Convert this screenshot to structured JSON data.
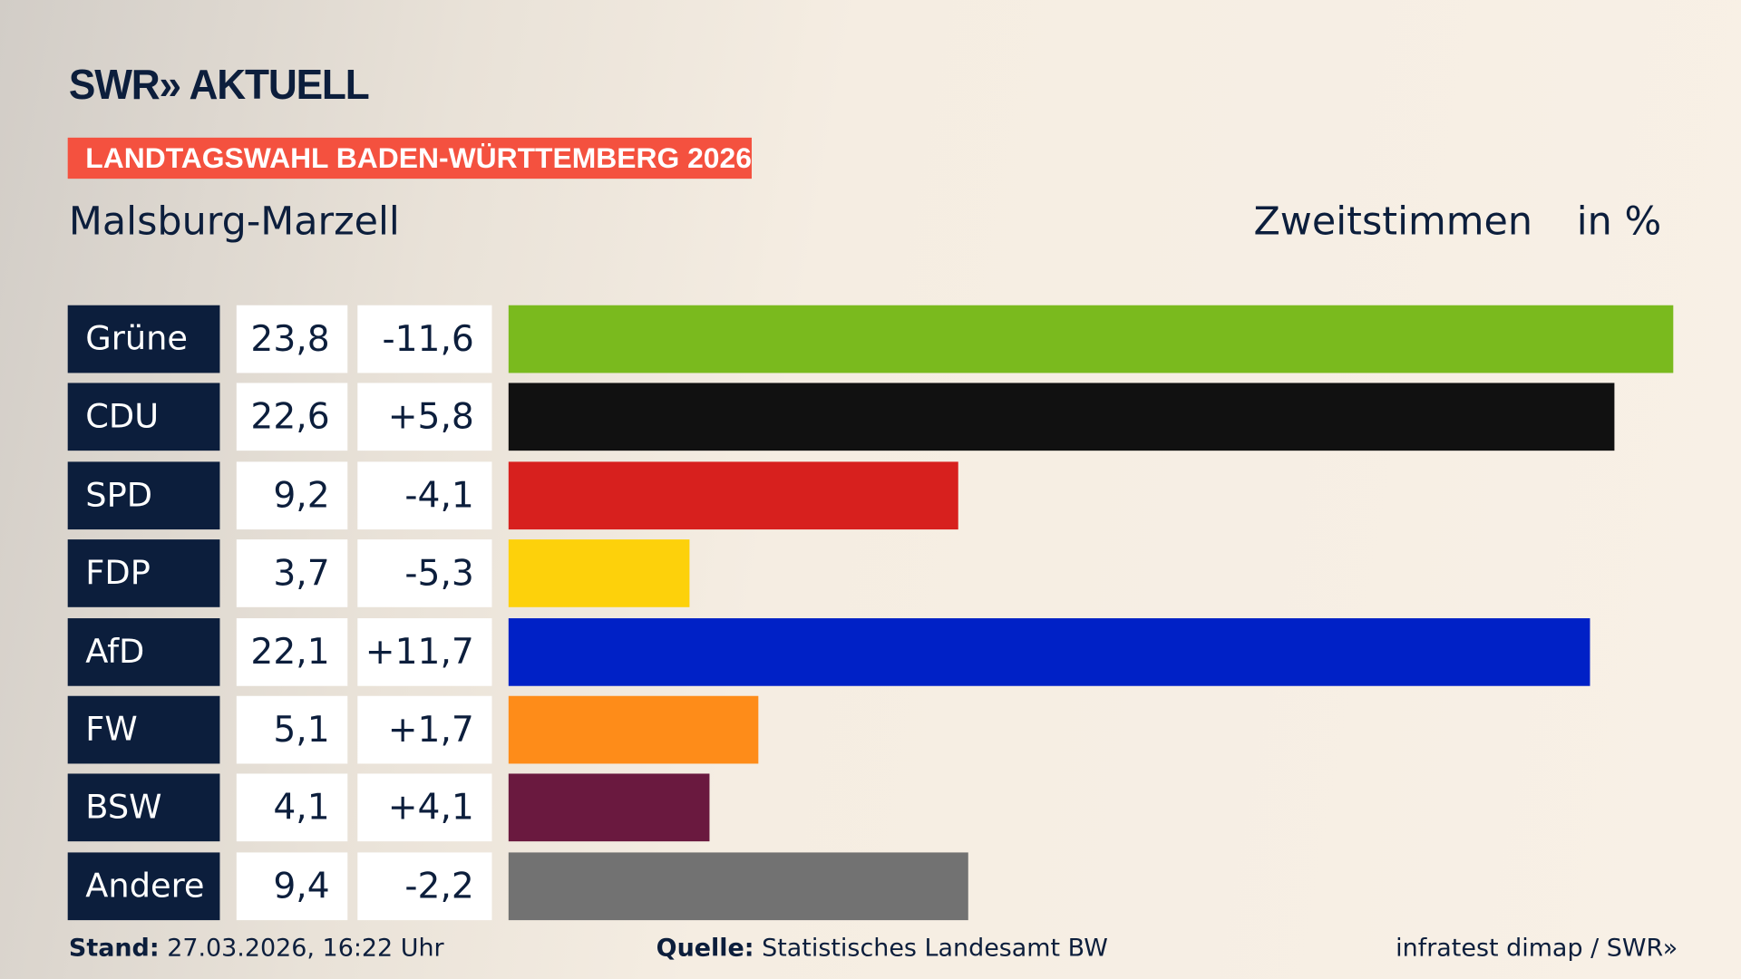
{
  "header": {
    "logo": "SWR» AKTUELL",
    "banner": "LANDTAGSWAHL BADEN-WÜRTTEMBERG 2026",
    "region": "Malsburg-Marzell",
    "mode": "Zweitstimmen",
    "unit": "in %"
  },
  "chart_data": {
    "type": "bar",
    "orientation": "horizontal",
    "categories": [
      "Grüne",
      "CDU",
      "SPD",
      "FDP",
      "AfD",
      "FW",
      "BSW",
      "Andere"
    ],
    "values": [
      23.8,
      22.6,
      9.2,
      3.7,
      22.1,
      5.1,
      4.1,
      9.4
    ],
    "value_labels": [
      "23,8",
      "22,6",
      "9,2",
      "3,7",
      "22,1",
      "5,1",
      "4,1",
      "9,4"
    ],
    "diff_labels": [
      "-11,6",
      "+5,8",
      "-4,1",
      "-5,3",
      "+11,7",
      "+1,7",
      "+4,1",
      "-2,2"
    ],
    "diffs": [
      -11.6,
      5.8,
      -4.1,
      -5.3,
      11.7,
      1.7,
      4.1,
      -2.2
    ],
    "colors": [
      "#7aba1e",
      "#111111",
      "#d7201e",
      "#fdd10b",
      "#0021c6",
      "#fe8c19",
      "#6a193f",
      "#727272"
    ],
    "xlim": [
      0,
      23.8
    ]
  },
  "footer": {
    "stand_label": "Stand:",
    "stand": "27.03.2026, 16:22 Uhr",
    "source_label": "Quelle:",
    "source": "Statistisches Landesamt BW",
    "credit": "infratest dimap / SWR»"
  }
}
